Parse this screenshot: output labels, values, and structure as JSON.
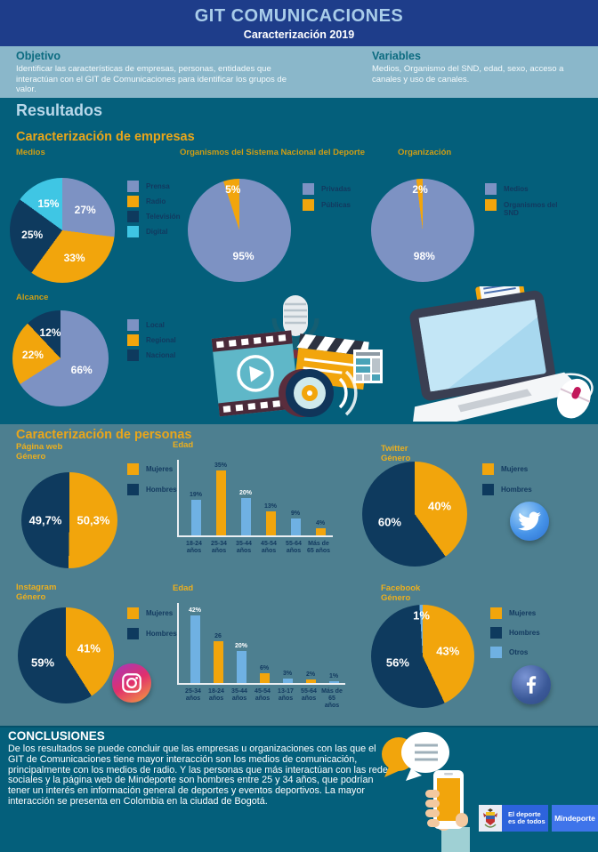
{
  "header": {
    "title": "GIT COMUNICACIONES",
    "subtitle": "Caracterización 2019"
  },
  "intro": {
    "objetivo": {
      "title": "Objetivo",
      "text": "Identificar las características de empresas, personas, entidades que interactúan con el GIT de Comunicaciones para identificar los grupos de valor."
    },
    "variables": {
      "title": "Variables",
      "text": "Medios, Organismo del SND, edad, sexo, acceso a canales y uso de canales."
    }
  },
  "results": {
    "title": "Resultados",
    "empresas_title": "Caracterización de empresas",
    "personas_title": "Caracterización de personas"
  },
  "chart_data": [
    {
      "key": "medios",
      "type": "pie",
      "title": "Medios",
      "slices": [
        {
          "label": "Prensa",
          "value": 27,
          "display": "27%",
          "color": "#7d92c3"
        },
        {
          "label": "Radio",
          "value": 33,
          "display": "33%",
          "color": "#f2a50c"
        },
        {
          "label": "Televisión",
          "value": 25,
          "display": "25%",
          "color": "#0e3a5e"
        },
        {
          "label": "Digital",
          "value": 15,
          "display": "15%",
          "color": "#3fc6e4"
        }
      ]
    },
    {
      "key": "organismos",
      "type": "pie",
      "title": "Organismos del Sistema Nacional del Deporte",
      "slices": [
        {
          "label": "Privadas",
          "value": 95,
          "display": "95%",
          "color": "#7d92c3"
        },
        {
          "label": "Públicas",
          "value": 5,
          "display": "5%",
          "color": "#f2a50c"
        }
      ]
    },
    {
      "key": "organizacion",
      "type": "pie",
      "title": "Organización",
      "slices": [
        {
          "label": "Medios",
          "value": 98,
          "display": "98%",
          "color": "#7d92c3"
        },
        {
          "label": "Organismos del SND",
          "value": 2,
          "display": "2%",
          "color": "#f2a50c"
        }
      ]
    },
    {
      "key": "alcance",
      "type": "pie",
      "title": "Alcance",
      "slices": [
        {
          "label": "Local",
          "value": 66,
          "display": "66%",
          "color": "#7d92c3"
        },
        {
          "label": "Regional",
          "value": 22,
          "display": "22%",
          "color": "#f2a50c"
        },
        {
          "label": "Nacional",
          "value": 12,
          "display": "12%",
          "color": "#0e3a5e"
        }
      ]
    },
    {
      "key": "pagina_web_genero",
      "type": "pie",
      "title": "Página web\nGénero",
      "slices": [
        {
          "label": "Mujeres",
          "value": 50.3,
          "display": "50,3%",
          "color": "#f2a50c"
        },
        {
          "label": "Hombres",
          "value": 49.7,
          "display": "49,7%",
          "color": "#0e3a5e"
        }
      ]
    },
    {
      "key": "edad_web",
      "type": "bar",
      "title": "Edad",
      "ylim": [
        0,
        35
      ],
      "categories": [
        "18-24\naños",
        "25-34\naños",
        "35-44\naños",
        "45-54\naños",
        "55-64\naños",
        "Más de\n65 años"
      ],
      "values": [
        19,
        35,
        20,
        13,
        9,
        4
      ],
      "display": [
        "19%",
        "35%",
        "20%",
        "13%",
        "9%",
        "4%"
      ],
      "colors": [
        "#6fb1e3",
        "#f2a50c",
        "#6fb1e3",
        "#f2a50c",
        "#6fb1e3",
        "#f2a50c"
      ],
      "label_colors": [
        "#12395f",
        "#12395f",
        "#ffffff",
        "#12395f",
        "#12395f",
        "#12395f"
      ]
    },
    {
      "key": "twitter_genero",
      "type": "pie",
      "title": "Twitter\nGénero",
      "slices": [
        {
          "label": "Mujeres",
          "value": 40,
          "display": "40%",
          "color": "#f2a50c"
        },
        {
          "label": "Hombres",
          "value": 60,
          "display": "60%",
          "color": "#0e3a5e"
        }
      ]
    },
    {
      "key": "instagram_genero",
      "type": "pie",
      "title": "Instagram\nGénero",
      "slices": [
        {
          "label": "Mujeres",
          "value": 41,
          "display": "41%",
          "color": "#f2a50c"
        },
        {
          "label": "Hombres",
          "value": 59,
          "display": "59%",
          "color": "#0e3a5e"
        }
      ]
    },
    {
      "key": "edad_instagram",
      "type": "bar",
      "title": "Edad",
      "ylim": [
        0,
        42
      ],
      "categories": [
        "25-34\naños",
        "18-24\naños",
        "35-44\naños",
        "45-54\naños",
        "13-17\naños",
        "55-64\naños",
        "Más de\n65 años"
      ],
      "values": [
        42,
        26,
        20,
        6,
        3,
        2,
        1
      ],
      "display": [
        "42%",
        "26",
        "20%",
        "6%",
        "3%",
        "2%",
        "1%"
      ],
      "colors": [
        "#6fb1e3",
        "#f2a50c",
        "#6fb1e3",
        "#f2a50c",
        "#6fb1e3",
        "#f2a50c",
        "#6fb1e3"
      ],
      "label_colors": [
        "#ffffff",
        "#12395f",
        "#ffffff",
        "#12395f",
        "#12395f",
        "#12395f",
        "#12395f"
      ]
    },
    {
      "key": "facebook_genero",
      "type": "pie",
      "title": "Facebook\nGénero",
      "slices": [
        {
          "label": "Mujeres",
          "value": 43,
          "display": "43%",
          "color": "#f2a50c"
        },
        {
          "label": "Hombres",
          "value": 56,
          "display": "56%",
          "color": "#0e3a5e"
        },
        {
          "label": "Otros",
          "value": 1,
          "display": "1%",
          "color": "#6fb1e3"
        }
      ]
    }
  ],
  "conclusions": {
    "title": "CONCLUSIONES",
    "text": "De los resultados se puede concluir que las empresas u organizaciones con las que el GIT de Comunicaciones tiene mayor interacción son los medios de comunicación, principalmente con los medios de radio. Y las personas que más interactúan con las redes sociales y la página web de Mindeporte son hombres entre 25 y 34 años, que podrían tener un interés en información general de deportes y eventos deportivos. La mayor interacción se presenta en Colombia en la ciudad de Bogotá."
  },
  "footer": {
    "slogan": "El deporte\nes de todos",
    "brand": "Mindeporte"
  },
  "icons": [
    "twitter-icon",
    "instagram-icon",
    "facebook-icon",
    "newspaper-icon",
    "media-production-illustration",
    "laptop-illustration",
    "chat-bubbles-illustration",
    "phone-in-hand-illustration",
    "colombia-coat-of-arms"
  ],
  "colors": {
    "header_bg": "#1e3d8a",
    "header_title": "#a9cdea",
    "intro_bg": "#8ab7ca",
    "intro_heading": "#0c6b80",
    "main_bg": "#045f7b",
    "personas_bg": "#4d7f90",
    "section_heading": "#eaa61a",
    "results_heading": "#b9d8ea",
    "pie_periwinkle": "#7d92c3",
    "pie_orange": "#f2a50c",
    "pie_navy": "#0e3a5e",
    "pie_cyan": "#3fc6e4",
    "bar_lightblue": "#6fb1e3"
  }
}
